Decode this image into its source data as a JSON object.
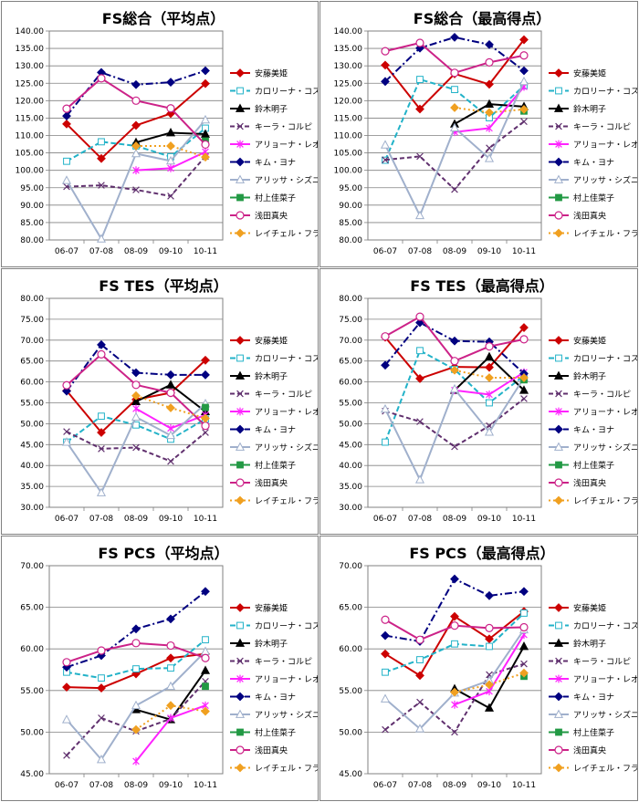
{
  "series_styles": [
    {
      "name": "安藤美姫",
      "color": "#cc0000",
      "dash": "",
      "marker": "diamond",
      "fill": true
    },
    {
      "name": "カロリーナ・コストナー",
      "color": "#22b2c8",
      "dash": "6,3",
      "marker": "square",
      "fill": false
    },
    {
      "name": "鈴木明子",
      "color": "#000000",
      "dash": "",
      "marker": "triangle",
      "fill": true
    },
    {
      "name": "キーラ・コルピ",
      "color": "#60306e",
      "dash": "5,3",
      "marker": "x",
      "fill": false
    },
    {
      "name": "アリョーナ・レオノワ",
      "color": "#ff22ff",
      "dash": "",
      "marker": "star",
      "fill": false
    },
    {
      "name": "キム・ヨナ",
      "color": "#000080",
      "dash": "8,3,2,3",
      "marker": "diamond",
      "fill": true
    },
    {
      "name": "アリッサ・シズニー",
      "color": "#a0b0cc",
      "dash": "",
      "marker": "triangle",
      "fill": false
    },
    {
      "name": "村上佳菜子",
      "color": "#229944",
      "dash": "",
      "marker": "square",
      "fill": true
    },
    {
      "name": "浅田真央",
      "color": "#cc2288",
      "dash": "",
      "marker": "circle",
      "fill": false
    },
    {
      "name": "レイチェル・フラット",
      "color": "#f0a020",
      "dash": "2,3",
      "marker": "diamond",
      "fill": true
    }
  ],
  "chart_data": [
    {
      "type": "line",
      "title": "FS総合（平均点）",
      "categories": [
        "06-07",
        "07-08",
        "08-09",
        "09-10",
        "10-11"
      ],
      "ylim": [
        80,
        140
      ],
      "ystep": 5,
      "yticks": [
        "80.00",
        "85.00",
        "90.00",
        "95.00",
        "100.00",
        "105.00",
        "110.00",
        "115.00",
        "120.00",
        "125.00",
        "130.00",
        "135.00",
        "140.00"
      ],
      "grid": true,
      "legend": "right",
      "series": [
        {
          "name": "安藤美姫",
          "values": [
            113.3,
            103.4,
            112.9,
            116.3,
            124.9
          ]
        },
        {
          "name": "カロリーナ・コストナー",
          "values": [
            102.6,
            108.2,
            107.0,
            103.9,
            112.1
          ]
        },
        {
          "name": "鈴木明子",
          "values": [
            null,
            null,
            108.0,
            110.8,
            110.4
          ]
        },
        {
          "name": "キーラ・コルピ",
          "values": [
            95.3,
            95.7,
            94.4,
            92.6,
            104.0
          ]
        },
        {
          "name": "アリョーナ・レオノワ",
          "values": [
            null,
            null,
            100.0,
            100.6,
            105.3
          ]
        },
        {
          "name": "キム・ヨナ",
          "values": [
            115.6,
            128.1,
            124.6,
            125.3,
            128.6
          ]
        },
        {
          "name": "アリッサ・シズニー",
          "values": [
            97.1,
            80.3,
            104.8,
            102.7,
            114.5
          ]
        },
        {
          "name": "村上佳菜子",
          "values": [
            null,
            null,
            null,
            null,
            108.4
          ]
        },
        {
          "name": "浅田真央",
          "values": [
            117.7,
            126.4,
            120.0,
            117.8,
            107.4
          ]
        },
        {
          "name": "レイチェル・フラット",
          "values": [
            null,
            null,
            107.0,
            107.0,
            103.8
          ]
        }
      ]
    },
    {
      "type": "line",
      "title": "FS総合（最高得点）",
      "categories": [
        "06-07",
        "07-08",
        "08-09",
        "09-10",
        "10-11"
      ],
      "ylim": [
        80,
        140
      ],
      "ystep": 5,
      "yticks": [
        "80.00",
        "85.00",
        "90.00",
        "95.00",
        "100.00",
        "105.00",
        "110.00",
        "115.00",
        "120.00",
        "125.00",
        "130.00",
        "135.00",
        "140.00"
      ],
      "grid": true,
      "legend": "right",
      "series": [
        {
          "name": "安藤美姫",
          "values": [
            130.2,
            117.6,
            127.7,
            124.7,
            137.5
          ]
        },
        {
          "name": "カロリーナ・コストナー",
          "values": [
            102.9,
            126.1,
            123.2,
            115.1,
            124.3
          ]
        },
        {
          "name": "鈴木明子",
          "values": [
            null,
            null,
            113.3,
            119.0,
            118.3
          ]
        },
        {
          "name": "キーラ・コルピ",
          "values": [
            103.0,
            104.0,
            94.5,
            106.4,
            114.0
          ]
        },
        {
          "name": "アリョーナ・レオノワ",
          "values": [
            null,
            null,
            111.0,
            112.1,
            124.0
          ]
        },
        {
          "name": "キム・ヨナ",
          "values": [
            125.5,
            135.1,
            138.2,
            136.1,
            128.6
          ]
        },
        {
          "name": "アリッサ・シズニー",
          "values": [
            107.3,
            87.0,
            112.2,
            103.4,
            125.5
          ]
        },
        {
          "name": "村上佳菜子",
          "values": [
            null,
            null,
            null,
            null,
            117.0
          ]
        },
        {
          "name": "浅田真央",
          "values": [
            134.2,
            136.6,
            128.0,
            131.0,
            133.0
          ]
        },
        {
          "name": "レイチェル・フラット",
          "values": [
            null,
            null,
            118.0,
            116.6,
            117.5
          ]
        }
      ]
    },
    {
      "type": "line",
      "title": "FS TES（平均点）",
      "categories": [
        "06-07",
        "07-08",
        "08-09",
        "09-10",
        "10-11"
      ],
      "ylim": [
        30,
        80
      ],
      "ystep": 5,
      "yticks": [
        "30.00",
        "35.00",
        "40.00",
        "45.00",
        "50.00",
        "55.00",
        "60.00",
        "65.00",
        "70.00",
        "75.00",
        "80.00"
      ],
      "grid": true,
      "legend": "right",
      "series": [
        {
          "name": "安藤美姫",
          "values": [
            57.9,
            47.9,
            55.8,
            57.4,
            65.2
          ]
        },
        {
          "name": "カロリーナ・コストナー",
          "values": [
            45.6,
            51.8,
            49.7,
            46.3,
            51.1
          ]
        },
        {
          "name": "鈴木明子",
          "values": [
            null,
            null,
            55.3,
            59.3,
            52.9
          ]
        },
        {
          "name": "キーラ・コルピ",
          "values": [
            48.1,
            44.0,
            44.3,
            41.0,
            47.9
          ]
        },
        {
          "name": "アリョーナ・レオノワ",
          "values": [
            null,
            null,
            53.6,
            48.9,
            52.1
          ]
        },
        {
          "name": "キム・ヨナ",
          "values": [
            57.8,
            68.9,
            62.2,
            61.7,
            61.7
          ]
        },
        {
          "name": "アリッサ・シズニー",
          "values": [
            45.6,
            33.5,
            51.6,
            47.2,
            54.8
          ]
        },
        {
          "name": "村上佳菜子",
          "values": [
            null,
            null,
            null,
            null,
            53.9
          ]
        },
        {
          "name": "浅田真央",
          "values": [
            59.2,
            66.6,
            59.3,
            57.4,
            49.5
          ]
        },
        {
          "name": "レイチェル・フラット",
          "values": [
            null,
            null,
            56.7,
            53.8,
            51.3
          ]
        }
      ]
    },
    {
      "type": "line",
      "title": "FS TES（最高得点）",
      "categories": [
        "06-07",
        "07-08",
        "08-09",
        "09-10",
        "10-11"
      ],
      "ylim": [
        30,
        80
      ],
      "ystep": 5,
      "yticks": [
        "30.00",
        "35.00",
        "40.00",
        "45.00",
        "50.00",
        "55.00",
        "60.00",
        "65.00",
        "70.00",
        "75.00",
        "80.00"
      ],
      "grid": true,
      "legend": "right",
      "series": [
        {
          "name": "安藤美姫",
          "values": [
            70.7,
            60.8,
            63.6,
            63.5,
            73.0
          ]
        },
        {
          "name": "カロリーナ・コストナー",
          "values": [
            45.6,
            67.5,
            63.0,
            55.0,
            61.5
          ]
        },
        {
          "name": "鈴木明子",
          "values": [
            null,
            null,
            58.0,
            66.0,
            58.0
          ]
        },
        {
          "name": "キーラ・コルピ",
          "values": [
            53.0,
            50.5,
            44.5,
            49.5,
            56.0
          ]
        },
        {
          "name": "アリョーナ・レオノワ",
          "values": [
            null,
            null,
            58.0,
            57.0,
            62.3
          ]
        },
        {
          "name": "キム・ヨナ",
          "values": [
            64.0,
            74.2,
            69.8,
            69.6,
            62.0
          ]
        },
        {
          "name": "アリッサ・シズニー",
          "values": [
            53.5,
            36.6,
            58.3,
            48.0,
            61.0
          ]
        },
        {
          "name": "村上佳菜子",
          "values": [
            null,
            null,
            null,
            null,
            60.5
          ]
        },
        {
          "name": "浅田真央",
          "values": [
            70.9,
            75.6,
            65.0,
            68.5,
            70.2
          ]
        },
        {
          "name": "レイチェル・フラット",
          "values": [
            null,
            null,
            62.8,
            61.0,
            61.0
          ]
        }
      ]
    },
    {
      "type": "line",
      "title": "FS PCS（平均点）",
      "categories": [
        "06-07",
        "07-08",
        "08-09",
        "09-10",
        "10-11"
      ],
      "ylim": [
        45,
        70
      ],
      "ystep": 5,
      "yticks": [
        "45.00",
        "50.00",
        "55.00",
        "60.00",
        "65.00",
        "70.00"
      ],
      "grid": true,
      "legend": "right",
      "series": [
        {
          "name": "安藤美姫",
          "values": [
            55.4,
            55.3,
            57.0,
            58.9,
            59.4
          ]
        },
        {
          "name": "カロリーナ・コストナー",
          "values": [
            57.2,
            56.5,
            57.6,
            57.7,
            61.1
          ]
        },
        {
          "name": "鈴木明子",
          "values": [
            null,
            null,
            52.7,
            51.5,
            57.4
          ]
        },
        {
          "name": "キーラ・コルピ",
          "values": [
            47.2,
            51.7,
            50.1,
            51.6,
            56.1
          ]
        },
        {
          "name": "アリョーナ・レオノワ",
          "values": [
            null,
            null,
            46.5,
            51.7,
            53.2
          ]
        },
        {
          "name": "キム・ヨナ",
          "values": [
            57.8,
            59.2,
            62.4,
            63.6,
            66.9
          ]
        },
        {
          "name": "アリッサ・シズニー",
          "values": [
            51.5,
            46.7,
            53.2,
            55.5,
            59.7
          ]
        },
        {
          "name": "村上佳菜子",
          "values": [
            null,
            null,
            null,
            null,
            55.5
          ]
        },
        {
          "name": "浅田真央",
          "values": [
            58.4,
            59.8,
            60.7,
            60.4,
            58.9
          ]
        },
        {
          "name": "レイチェル・フラット",
          "values": [
            null,
            null,
            50.3,
            53.2,
            52.5
          ]
        }
      ]
    },
    {
      "type": "line",
      "title": "FS PCS（最高得点）",
      "categories": [
        "06-07",
        "07-08",
        "08-09",
        "09-10",
        "10-11"
      ],
      "ylim": [
        45,
        70
      ],
      "ystep": 5,
      "yticks": [
        "45.00",
        "50.00",
        "55.00",
        "60.00",
        "65.00",
        "70.00"
      ],
      "grid": true,
      "legend": "right",
      "series": [
        {
          "name": "安藤美姫",
          "values": [
            59.4,
            56.8,
            63.9,
            61.2,
            64.5
          ]
        },
        {
          "name": "カロリーナ・コストナー",
          "values": [
            57.2,
            58.7,
            60.6,
            60.3,
            64.3
          ]
        },
        {
          "name": "鈴木明子",
          "values": [
            null,
            null,
            55.2,
            52.9,
            60.3
          ]
        },
        {
          "name": "キーラ・コルピ",
          "values": [
            50.3,
            53.6,
            50.0,
            56.9,
            58.2
          ]
        },
        {
          "name": "アリョーナ・レオノワ",
          "values": [
            null,
            null,
            53.3,
            54.9,
            61.7
          ]
        },
        {
          "name": "キム・ヨナ",
          "values": [
            61.6,
            60.9,
            68.4,
            66.4,
            66.9
          ]
        },
        {
          "name": "アリッサ・シズニー",
          "values": [
            54.0,
            50.4,
            54.7,
            56.2,
            62.3
          ]
        },
        {
          "name": "村上佳菜子",
          "values": [
            null,
            null,
            null,
            null,
            56.7
          ]
        },
        {
          "name": "浅田真央",
          "values": [
            63.5,
            61.1,
            62.8,
            62.5,
            62.6
          ]
        },
        {
          "name": "レイチェル・フラット",
          "values": [
            null,
            null,
            54.8,
            55.7,
            57.1
          ]
        }
      ]
    }
  ]
}
